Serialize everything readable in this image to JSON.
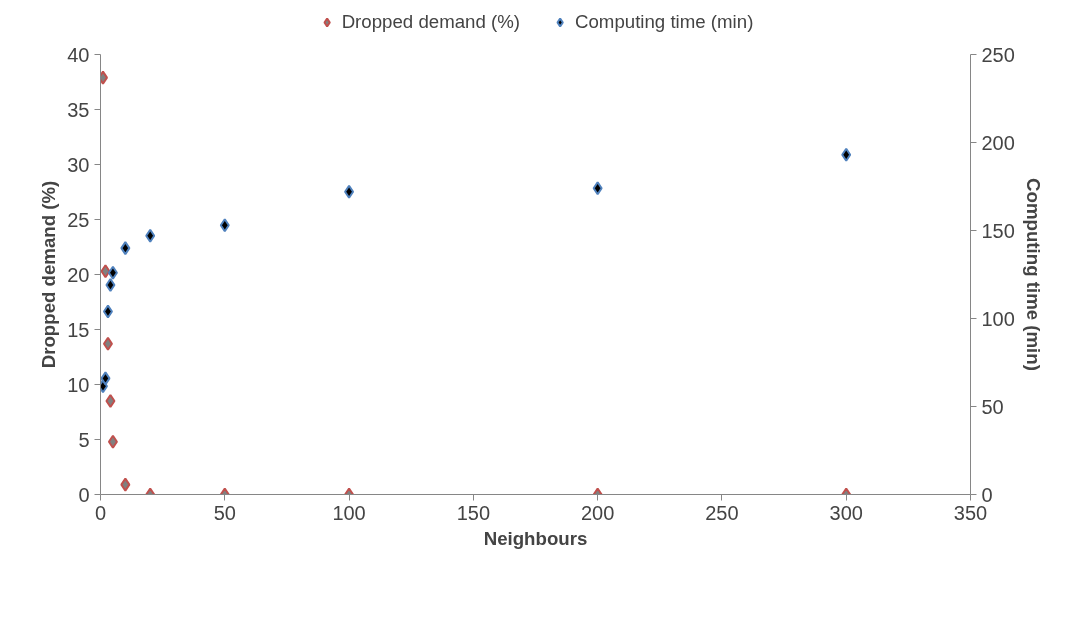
{
  "chart_data": {
    "type": "scatter",
    "xlabel": "Neighbours",
    "ylabel": "Dropped demand (%)",
    "y2label": "Computing time (min)",
    "xlim": [
      0,
      350
    ],
    "xticks": [
      0,
      50,
      100,
      150,
      200,
      250,
      300,
      350
    ],
    "ylim": [
      0,
      40
    ],
    "yticks": [
      0,
      5,
      10,
      15,
      20,
      25,
      30,
      35,
      40
    ],
    "y2lim": [
      0,
      250
    ],
    "y2ticks": [
      0,
      50,
      100,
      150,
      200,
      250
    ],
    "marker": "diamond",
    "grid": false,
    "legend": "top",
    "series": [
      {
        "name": "Dropped demand (%)",
        "color": "#c0504d",
        "x": [
          1,
          2,
          3,
          4,
          5,
          10,
          20,
          50,
          100,
          200,
          300
        ],
        "values": [
          37.9,
          20.3,
          13.7,
          8.5,
          4.8,
          0.9,
          0,
          0,
          0,
          0,
          0
        ]
      },
      {
        "name": "Computing time (min)",
        "color": "#4f81bd",
        "axis": "y2",
        "x": [
          1,
          2,
          3,
          4,
          5,
          10,
          20,
          50,
          100,
          200,
          300
        ],
        "values": [
          61.5,
          66,
          104,
          119,
          126,
          140,
          147,
          153,
          172,
          174,
          193
        ]
      }
    ]
  }
}
